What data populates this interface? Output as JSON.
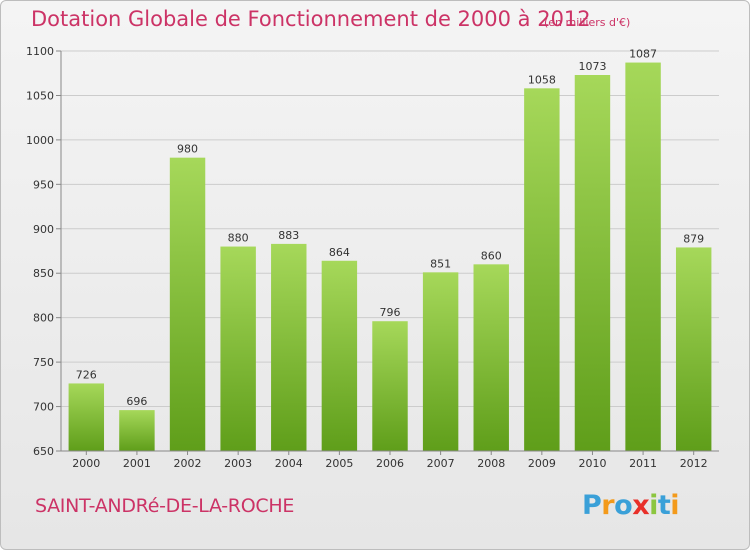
{
  "title": "Dotation Globale de Fonctionnement de 2000 à 2012",
  "unit": "(en milliers d'€)",
  "commune": "SAINT-ANDRé-DE-LA-ROCHE",
  "logo": {
    "text": "Proxiti",
    "letter_colors": [
      "#3aa0d8",
      "#f39a1b",
      "#3aa0d8",
      "#e8302a",
      "#8cc63f",
      "#3aa0d8",
      "#f39a1b"
    ]
  },
  "colors": {
    "title": "#cc3366",
    "bar_light": "#a6d85a",
    "bar_dark": "#5f9e1a"
  },
  "chart_data": {
    "type": "bar",
    "title": "Dotation Globale de Fonctionnement de 2000 à 2012",
    "subtitle": "(en milliers d'€)",
    "xlabel": "",
    "ylabel": "",
    "categories": [
      "2000",
      "2001",
      "2002",
      "2003",
      "2004",
      "2005",
      "2006",
      "2007",
      "2008",
      "2009",
      "2010",
      "2011",
      "2012"
    ],
    "values": [
      726,
      696,
      980,
      880,
      883,
      864,
      796,
      851,
      860,
      1058,
      1073,
      1087,
      879
    ],
    "ylim": [
      650,
      1100
    ],
    "yticks": [
      650,
      700,
      750,
      800,
      850,
      900,
      950,
      1000,
      1050,
      1100
    ],
    "grid": true
  }
}
